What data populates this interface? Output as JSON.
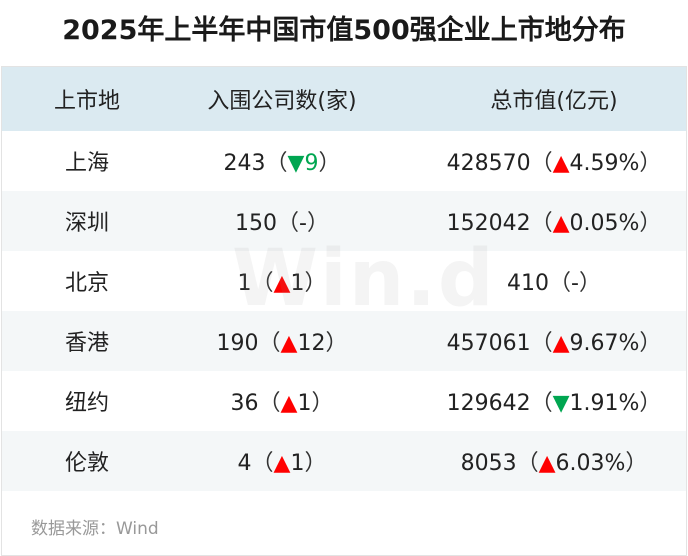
{
  "title": "2025年上半年中国市值500强企业上市地分布",
  "headers": {
    "place": "上市地",
    "count": "入围公司数(家)",
    "value": "总市值(亿元)"
  },
  "rows": [
    {
      "place": "上海",
      "count": "243",
      "count_dir": "down",
      "count_change": "9",
      "value": "428570",
      "value_dir": "up",
      "value_change": "4.59%"
    },
    {
      "place": "深圳",
      "count": "150",
      "count_dir": "none",
      "count_change": "-",
      "value": "152042",
      "value_dir": "up",
      "value_change": "0.05%"
    },
    {
      "place": "北京",
      "count": "1",
      "count_dir": "up",
      "count_change": "1",
      "value": "410",
      "value_dir": "none",
      "value_change": "-"
    },
    {
      "place": "香港",
      "count": "190",
      "count_dir": "up",
      "count_change": "12",
      "value": "457061",
      "value_dir": "up",
      "value_change": "9.67%"
    },
    {
      "place": "纽约",
      "count": "36",
      "count_dir": "up",
      "count_change": "1",
      "value": "129642",
      "value_dir": "down",
      "value_change": "1.91%"
    },
    {
      "place": "伦敦",
      "count": "4",
      "count_dir": "up",
      "count_change": "1",
      "value": "8053",
      "value_dir": "up",
      "value_change": "6.03%"
    }
  ],
  "colors": {
    "up": "#ff0000",
    "down": "#00a651",
    "header_bg": "#dbeaf1",
    "alt_row_bg": "#f4f7f8"
  },
  "watermark": "Win.d",
  "source": "数据来源：Wind"
}
